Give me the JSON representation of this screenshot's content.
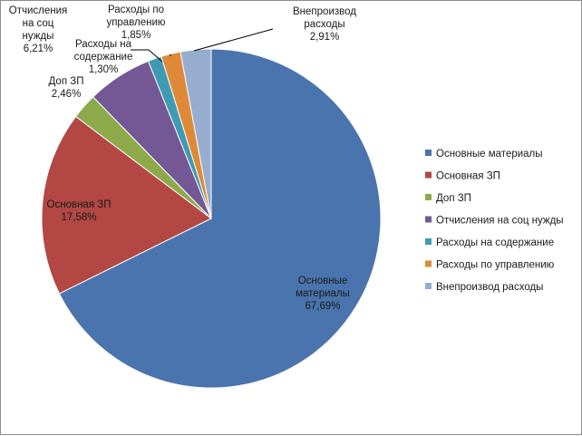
{
  "chart_data": {
    "type": "pie",
    "title": "",
    "slices": [
      {
        "name": "Основные материалы",
        "value": 67.69,
        "label_lines": [
          "Основные",
          "материалы",
          "67,69%"
        ],
        "color": "#4a74ad"
      },
      {
        "name": "Основная ЗП",
        "value": 17.58,
        "label_lines": [
          "Основная ЗП",
          "17,58%"
        ],
        "color": "#b24744"
      },
      {
        "name": "Доп ЗП",
        "value": 2.46,
        "label_lines": [
          "Доп ЗП",
          "2,46%"
        ],
        "color": "#8daa4b"
      },
      {
        "name": "Отчисления на соц нужды",
        "value": 6.21,
        "label_lines": [
          "Отчисления",
          "на соц",
          "нужды",
          "6,21%"
        ],
        "color": "#735895"
      },
      {
        "name": "Расходы на содержание",
        "value": 1.3,
        "label_lines": [
          "Расходы на",
          "содержание",
          "1,30%"
        ],
        "color": "#3e9bb3"
      },
      {
        "name": "Расходы по управлению",
        "value": 1.85,
        "label_lines": [
          "Расходы по",
          "управлению",
          "1,85%"
        ],
        "color": "#de8937"
      },
      {
        "name": "Внепроизвод расходы",
        "value": 2.91,
        "label_lines": [
          "Внепроизвод",
          "расходы",
          "2,91%"
        ],
        "color": "#97adcf"
      }
    ],
    "legend_position": "right",
    "start_angle": "12 o'clock",
    "direction": "clockwise"
  }
}
